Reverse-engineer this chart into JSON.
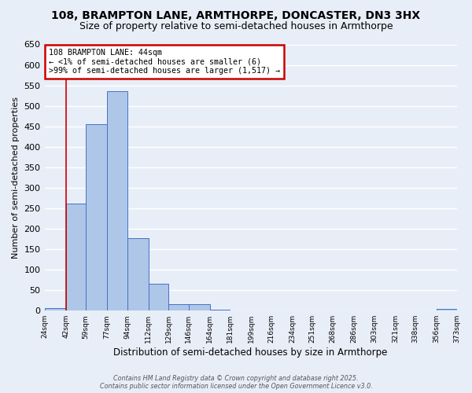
{
  "title1": "108, BRAMPTON LANE, ARMTHORPE, DONCASTER, DN3 3HX",
  "title2": "Size of property relative to semi-detached houses in Armthorpe",
  "xlabel": "Distribution of semi-detached houses by size in Armthorpe",
  "ylabel": "Number of semi-detached properties",
  "footer1": "Contains HM Land Registry data © Crown copyright and database right 2025.",
  "footer2": "Contains public sector information licensed under the Open Government Licence v3.0.",
  "annotation_title": "108 BRAMPTON LANE: 44sqm",
  "annotation_line2": "← <1% of semi-detached houses are smaller (6)",
  "annotation_line3": ">99% of semi-detached houses are larger (1,517) →",
  "bin_edges": [
    24,
    42,
    59,
    77,
    94,
    112,
    129,
    146,
    164,
    181,
    199,
    216,
    234,
    251,
    268,
    286,
    303,
    321,
    338,
    356,
    373
  ],
  "bar_heights": [
    6,
    262,
    455,
    535,
    176,
    66,
    15,
    15,
    3,
    0,
    0,
    0,
    0,
    0,
    0,
    0,
    0,
    0,
    0,
    5
  ],
  "bar_color": "#aec6e8",
  "bar_edge_color": "#4472c4",
  "vline_x": 42,
  "vline_color": "#cc0000",
  "ylim": [
    0,
    650
  ],
  "yticks": [
    0,
    50,
    100,
    150,
    200,
    250,
    300,
    350,
    400,
    450,
    500,
    550,
    600,
    650
  ],
  "background_color": "#e8eef8",
  "grid_color": "#ffffff",
  "annotation_box_color": "#ffffff",
  "annotation_box_edge_color": "#cc0000",
  "title1_fontsize": 10,
  "title2_fontsize": 9
}
